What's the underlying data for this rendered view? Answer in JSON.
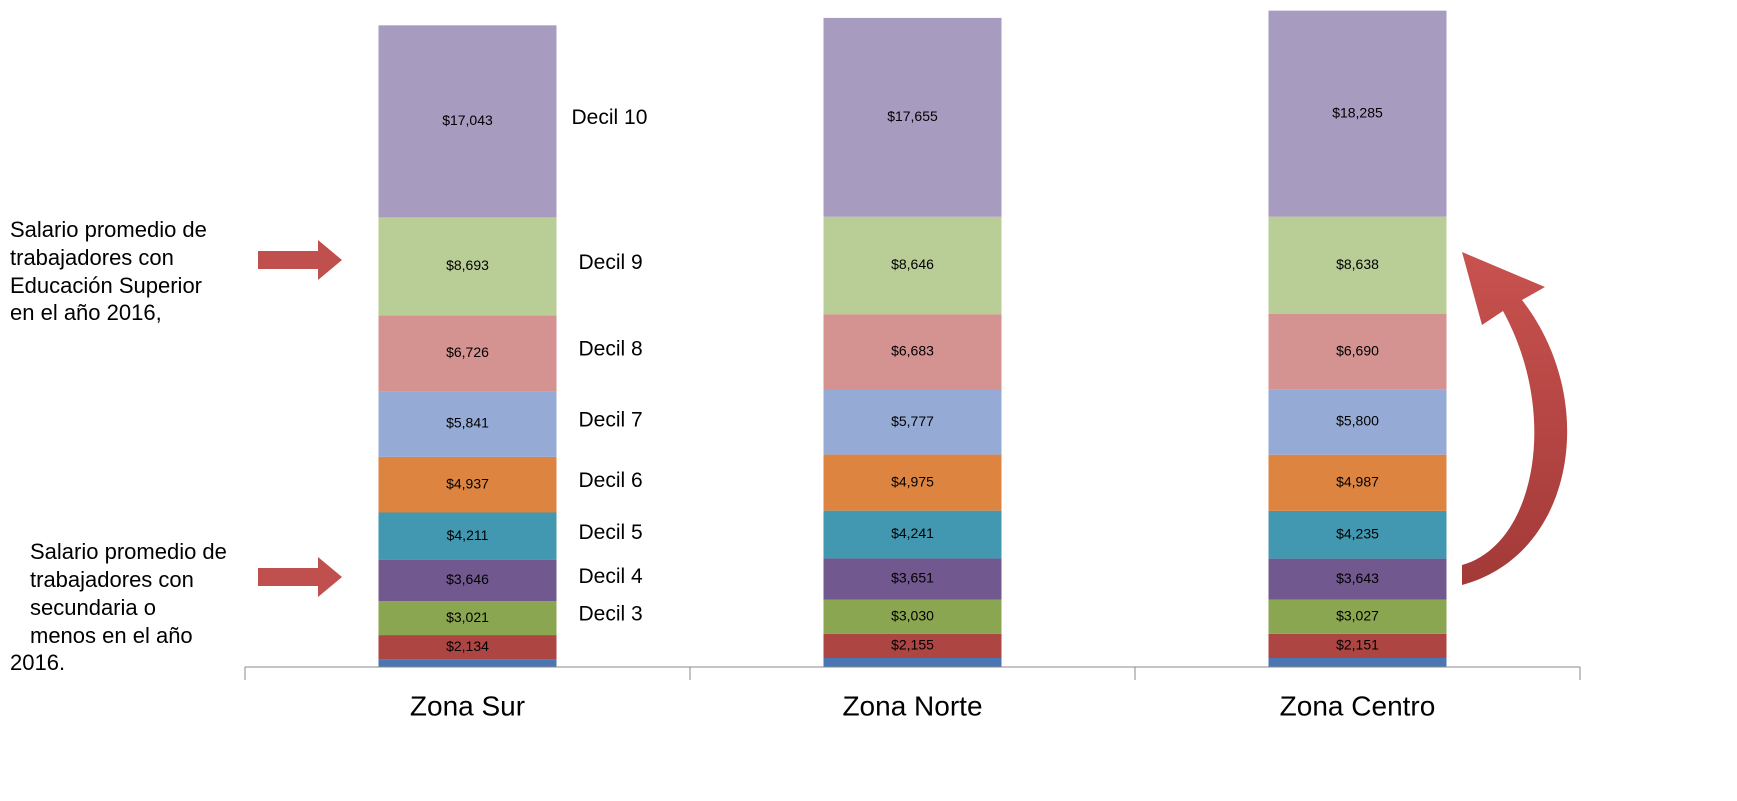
{
  "chart_data": {
    "type": "stacked_bar",
    "categories": [
      "Zona Sur",
      "Zona Norte",
      "Zona Centro"
    ],
    "ylim": [
      0,
      59200
    ],
    "series": [
      {
        "color": "#4a76b4",
        "values": [
          700,
          800,
          800
        ]
      },
      {
        "color": "#ad4542",
        "values": [
          2134,
          2155,
          2151
        ],
        "value_labels": [
          "$2,134",
          "$2,155",
          "$2,151"
        ]
      },
      {
        "name": "Decil 3",
        "color": "#8ba650",
        "values": [
          3021,
          3030,
          3027
        ],
        "value_labels": [
          "$3,021",
          "$3,030",
          "$3,027"
        ]
      },
      {
        "name": "Decil 4",
        "color": "#71588f",
        "values": [
          3646,
          3651,
          3643
        ],
        "value_labels": [
          "$3,646",
          "$3,651",
          "$3,643"
        ]
      },
      {
        "name": "Decil 5",
        "color": "#4198b0",
        "values": [
          4211,
          4241,
          4235
        ],
        "value_labels": [
          "$4,211",
          "$4,241",
          "$4,235"
        ]
      },
      {
        "name": "Decil 6",
        "color": "#dd8441",
        "values": [
          4937,
          4975,
          4987
        ],
        "value_labels": [
          "$4,937",
          "$4,975",
          "$4,987"
        ]
      },
      {
        "name": "Decil 7",
        "color": "#95abd5",
        "values": [
          5841,
          5777,
          5800
        ],
        "value_labels": [
          "$5,841",
          "$5,777",
          "$5,800"
        ]
      },
      {
        "name": "Decil 8",
        "color": "#d49290",
        "values": [
          6726,
          6683,
          6690
        ],
        "value_labels": [
          "$6,726",
          "$6,683",
          "$6,690"
        ]
      },
      {
        "name": "Decil 9",
        "color": "#b9cd96",
        "values": [
          8693,
          8646,
          8638
        ],
        "value_labels": [
          "$8,693",
          "$8,646",
          "$8,638"
        ]
      },
      {
        "name": "Decil 10",
        "color": "#a89bc0",
        "values": [
          17043,
          17655,
          18285
        ],
        "value_labels": [
          "$17,043",
          "$17,655",
          "$18,285"
        ]
      }
    ],
    "annotations": [
      [
        "Salario promedio de",
        "trabajadores con",
        "Educación Superior",
        "en el año 2016,"
      ],
      [
        "Salario promedio de",
        "trabajadores con",
        "secundaria o",
        "menos en el año",
        "2016."
      ]
    ]
  }
}
